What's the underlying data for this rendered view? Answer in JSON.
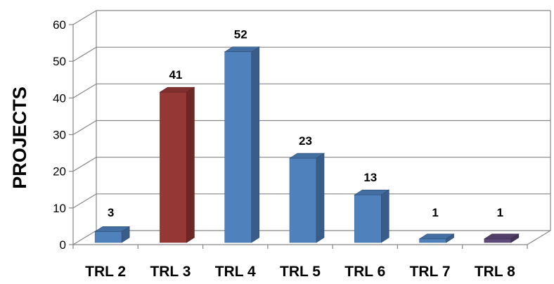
{
  "chart_data": {
    "type": "bar",
    "title": "",
    "xlabel": "",
    "ylabel": "PROJECTS",
    "ylim": [
      0,
      60
    ],
    "yticks": [
      0,
      10,
      20,
      30,
      40,
      50,
      60
    ],
    "categories": [
      "TRL 2",
      "TRL 3",
      "TRL 4",
      "TRL 5",
      "TRL 6",
      "TRL 7",
      "TRL 8"
    ],
    "values": [
      3,
      41,
      52,
      23,
      13,
      1,
      1
    ],
    "data_labels": [
      "3",
      "41",
      "52",
      "23",
      "13",
      "1",
      "1"
    ],
    "bar_colors": [
      "#4F81BD",
      "#953735",
      "#4F81BD",
      "#4F81BD",
      "#4F81BD",
      "#4F81BD",
      "#604A7B"
    ],
    "style": "3d-column",
    "grid": true,
    "legend": "none"
  }
}
